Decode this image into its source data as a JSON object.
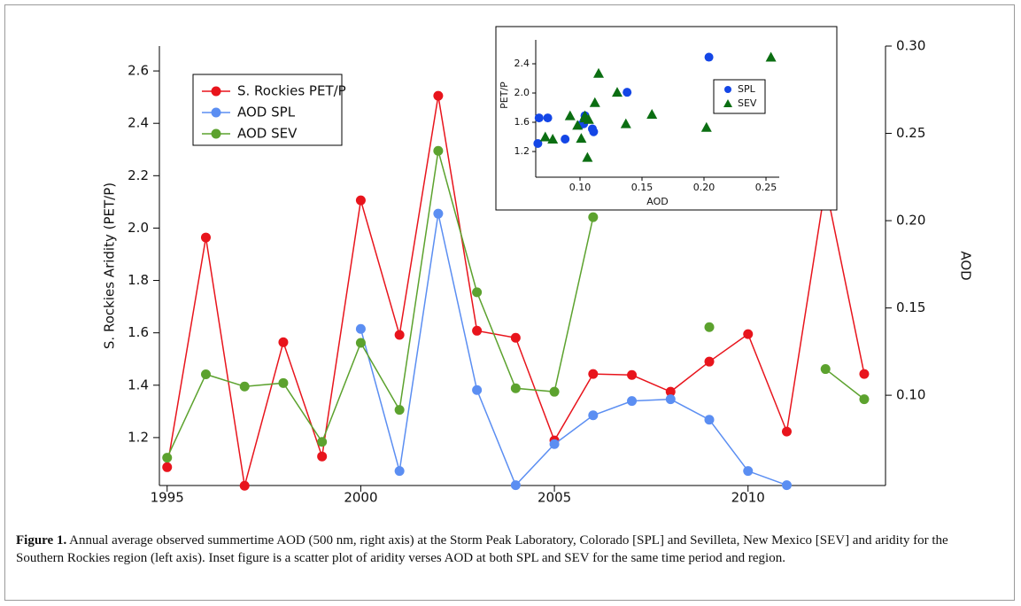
{
  "chart_data": [
    {
      "type": "line",
      "y_label": "S. Rockies Aridity (PET/P)",
      "y2_label": "AOD",
      "x": [
        1995,
        1996,
        1997,
        1998,
        1999,
        2000,
        2001,
        2002,
        2003,
        2004,
        2005,
        2006,
        2007,
        2008,
        2009,
        2010,
        2011,
        2012,
        2013
      ],
      "xlim": [
        1994.8,
        2013.55
      ],
      "xticks": [
        1995,
        2000,
        2005,
        2010
      ],
      "ylim": [
        1.017,
        2.695
      ],
      "yticks": [
        1.2,
        1.4,
        1.6,
        1.8,
        {
          "value": 2.0,
          "label": "2.0"
        },
        2.2,
        2.4,
        2.6
      ],
      "y2lim": [
        0.0483,
        0.3
      ],
      "y2ticks": [
        {
          "value": 0.1,
          "label": "0.10"
        },
        0.15,
        {
          "value": 0.2,
          "label": "0.20"
        },
        0.25,
        {
          "value": 0.3,
          "label": "0.30"
        }
      ],
      "series": [
        {
          "name": "S. Rockies PET/P",
          "color": "#e8141c",
          "axis": "y",
          "values": [
            1.087,
            1.964,
            1.016,
            1.564,
            1.128,
            2.106,
            1.592,
            2.505,
            1.608,
            1.581,
            1.189,
            1.443,
            1.439,
            1.375,
            1.49,
            1.595,
            1.223,
            2.163,
            1.443
          ]
        },
        {
          "name": "AOD SPL",
          "color": "#5b8ef2",
          "axis": "y2",
          "values": [
            null,
            null,
            null,
            null,
            null,
            0.138,
            0.0566,
            0.204,
            0.103,
            0.0485,
            0.072,
            0.0885,
            0.0967,
            0.0977,
            0.086,
            0.0566,
            0.0485,
            null,
            null
          ]
        },
        {
          "name": "AOD SEV",
          "color": "#5ca22e",
          "axis": "y2",
          "values": [
            0.0642,
            0.112,
            0.105,
            0.107,
            0.0733,
            0.13,
            0.0916,
            0.24,
            0.159,
            0.104,
            0.102,
            0.202,
            null,
            null,
            0.139,
            null,
            null,
            0.115,
            0.0977
          ]
        }
      ]
    },
    {
      "type": "scatter",
      "x_label": "AOD",
      "y_label": "PET/P",
      "xlim": [
        0.0643,
        0.2607
      ],
      "xticks": [
        {
          "value": 0.1,
          "label": "0.10"
        },
        0.15,
        {
          "value": 0.2,
          "label": "0.20"
        },
        0.25
      ],
      "ylim": [
        0.849,
        2.727
      ],
      "yticks": [
        1.2,
        1.6,
        {
          "value": 2.0,
          "label": "2.0"
        },
        2.4
      ],
      "series": [
        {
          "name": "SPL",
          "color": "#1446e6",
          "marker": "circle",
          "x": [
            0.067,
            0.074,
            0.066,
            0.088,
            0.1,
            0.103,
            0.104,
            0.11,
            0.111,
            0.138,
            0.204,
            0.103
          ],
          "values": [
            1.66,
            1.66,
            1.31,
            1.37,
            1.56,
            1.6,
            1.69,
            1.51,
            1.47,
            2.01,
            2.49,
            1.58
          ]
        },
        {
          "name": "SEV",
          "color": "#0b6e12",
          "marker": "triangle",
          "x": [
            0.072,
            0.078,
            0.092,
            0.098,
            0.101,
            0.104,
            0.106,
            0.107,
            0.112,
            0.115,
            0.13,
            0.137,
            0.158,
            0.202,
            0.254,
            0.104
          ],
          "values": [
            1.4,
            1.37,
            1.69,
            1.56,
            1.38,
            1.69,
            1.12,
            1.64,
            1.87,
            2.27,
            2.01,
            1.58,
            1.71,
            1.53,
            2.49,
            1.66
          ]
        }
      ]
    }
  ],
  "caption": {
    "label": "Figure 1.",
    "text": "Annual average observed summertime AOD (500 nm, right axis) at the Storm Peak Laboratory, Colorado [SPL] and Sevilleta, New Mexico [SEV] and aridity for the Southern Rockies region (left axis). Inset figure is a scatter plot of aridity verses AOD at both SPL and SEV for the same time period and region."
  }
}
